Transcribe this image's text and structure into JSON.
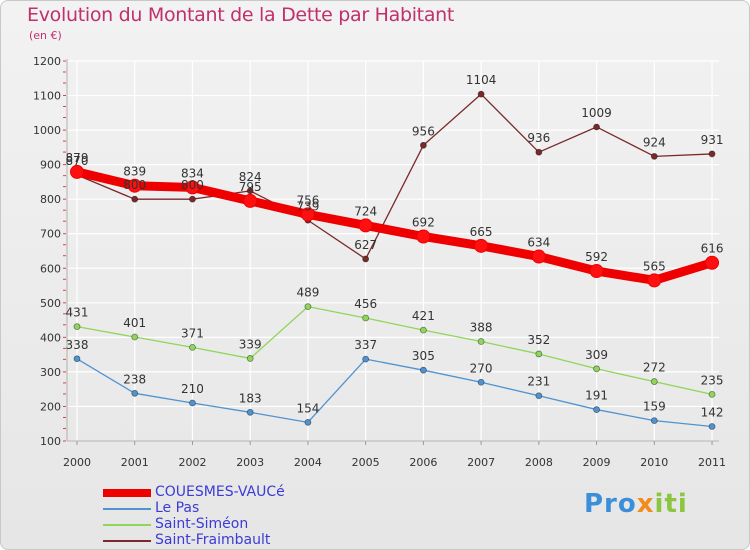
{
  "header": {
    "title": "Evolution du Montant de la Dette par Habitant",
    "subtitle": "(en €)"
  },
  "logo": {
    "text": "Proxiti",
    "parts": [
      "Pro",
      "x",
      "iti"
    ]
  },
  "chart_data": {
    "type": "line",
    "title": "Evolution du Montant de la Dette par Habitant",
    "subtitle": "(en €)",
    "xlabel": "",
    "ylabel": "",
    "x": [
      "2000",
      "2001",
      "2002",
      "2003",
      "2004",
      "2005",
      "2006",
      "2007",
      "2008",
      "2009",
      "2010",
      "2011"
    ],
    "ylim": [
      100,
      1200
    ],
    "yticks": [
      100,
      200,
      300,
      400,
      500,
      600,
      700,
      800,
      900,
      1000,
      1100,
      1200
    ],
    "grid": true,
    "legend_position": "bottom-left",
    "series": [
      {
        "name": "COUESMES-VAUCé",
        "color": "#ee0000",
        "values": [
          879,
          839,
          834,
          795,
          756,
          724,
          692,
          665,
          634,
          592,
          565,
          616
        ]
      },
      {
        "name": "Le Pas",
        "color": "#4f93d1",
        "values": [
          338,
          238,
          210,
          183,
          154,
          337,
          305,
          270,
          231,
          191,
          159,
          142
        ]
      },
      {
        "name": "Saint-Siméon",
        "color": "#8fd65a",
        "values": [
          431,
          401,
          371,
          339,
          489,
          456,
          421,
          388,
          352,
          309,
          272,
          235
        ]
      },
      {
        "name": "Saint-Fraimbault",
        "color": "#7a2a2a",
        "values": [
          870,
          800,
          800,
          824,
          739,
          627,
          956,
          1104,
          936,
          1009,
          924,
          931
        ]
      }
    ]
  }
}
